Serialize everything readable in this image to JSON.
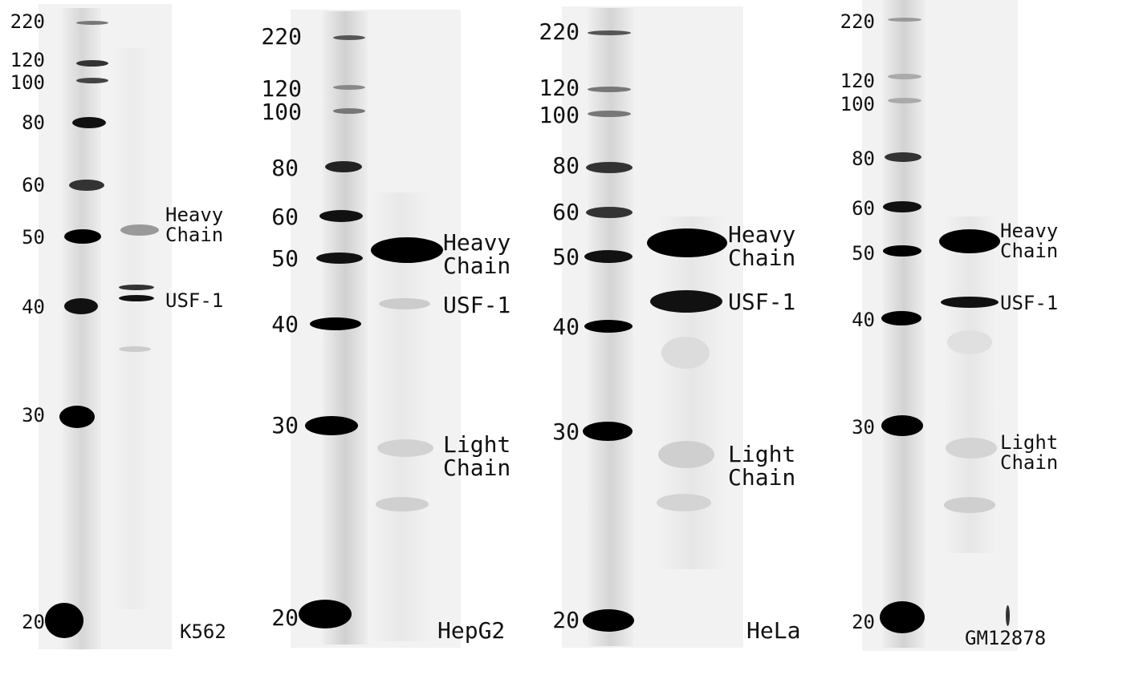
{
  "ladder": [
    "220",
    "120",
    "100",
    "80",
    "60",
    "50",
    "40",
    "30",
    "20"
  ],
  "panels": [
    {
      "cell_line": "K562",
      "labels": {
        "heavy_line1": "Heavy",
        "heavy_line2": "Chain",
        "usf": "USF-1"
      }
    },
    {
      "cell_line": "HepG2",
      "labels": {
        "heavy_line1": "Heavy",
        "heavy_line2": "Chain",
        "usf": "USF-1",
        "light_line1": "Light",
        "light_line2": "Chain"
      }
    },
    {
      "cell_line": "HeLa",
      "labels": {
        "heavy_line1": "Heavy",
        "heavy_line2": "Chain",
        "usf": "USF-1",
        "light_line1": "Light",
        "light_line2": "Chain"
      }
    },
    {
      "cell_line": "GM12878",
      "labels": {
        "heavy_line1": "Heavy",
        "heavy_line2": "Chain",
        "usf": "USF-1",
        "light_line1": "Light",
        "light_line2": "Chain"
      }
    }
  ]
}
